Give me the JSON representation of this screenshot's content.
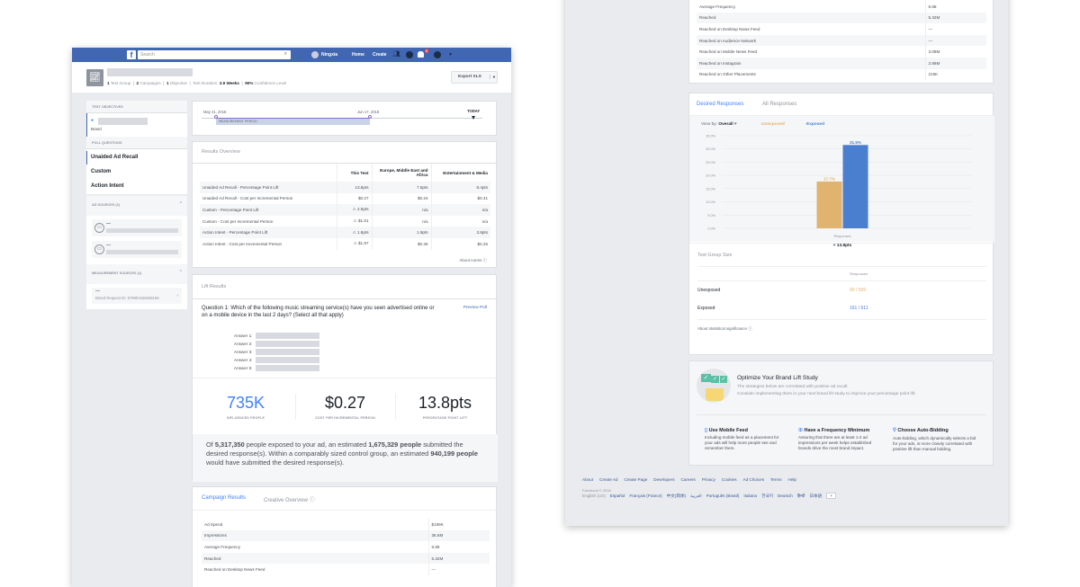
{
  "topbar": {
    "logo": "f",
    "search_placeholder": "Search",
    "user": "Ningxia",
    "home": "Home",
    "create": "Create",
    "notification_count": "6"
  },
  "header": {
    "stats": [
      {
        "n": "1",
        "l": "Test Group"
      },
      {
        "n": "2",
        "l": "Campaigns"
      },
      {
        "n": "1",
        "l": "Objective"
      }
    ],
    "duration_label": "Test Duration:",
    "duration": "3.9 Weeks",
    "confidence": "90%",
    "confidence_label": "Confidence Level",
    "export": "Export XLS"
  },
  "sidebar": {
    "test_objectives": "TEST OBJECTIVES",
    "objective_type": "Brand",
    "poll_questions": "POLL QUESTIONS",
    "questions": [
      "Unaided Ad Recall",
      "Custom",
      "Action Intent"
    ],
    "ad_sources": "AD SOURCES (2)",
    "ad_source_items": [
      "—",
      "—"
    ],
    "measurement_sources": "MEASUREMENT SOURCES (1)",
    "measurement_item": "—",
    "brand_request": "Brand Request ID: 879901645538158"
  },
  "timeline": {
    "start": "May 21, 2018",
    "end": "Jun 17, 2018",
    "today": "TODAY",
    "period": "MEASUREMENT PERIOD"
  },
  "results_overview": {
    "title": "Results Overview",
    "columns": [
      "This Test",
      "Europe, Middle East and Africa",
      "Entertainment & Media"
    ],
    "rows": [
      [
        "Unaided Ad Recall - Percentage Point Lift",
        "13.8pts",
        "7.5pts",
        "8.4pts"
      ],
      [
        "Unaided Ad Recall - Cost per Incremental Person",
        "$0.27",
        "$0.24",
        "$0.41"
      ],
      [
        "Custom - Percentage Point Lift",
        "⚠ 2.5pts",
        "n/a",
        "n/a"
      ],
      [
        "Custom - Cost per Incremental Person",
        "⚠ $1.51",
        "n/a",
        "n/a"
      ],
      [
        "Action Intent - Percentage Point Lift",
        "⚠ 1.9pts",
        "1.9pts",
        "3.8pts"
      ],
      [
        "Action Intent - Cost per Incremental Person",
        "⚠ $1.97",
        "$0.36",
        "$0.25"
      ]
    ],
    "about": "About norms"
  },
  "lift": {
    "title": "Lift Results",
    "question": "Question 1: Which of the following music streaming service(s) have you seen advertised online or on a mobile device in the last 2 days? (Select all that apply)",
    "preview": "Preview Poll",
    "answers": [
      "Answer 1:",
      "Answer 2:",
      "Answer 3:",
      "Answer 4:",
      "Answer 5:"
    ],
    "kpis": [
      {
        "v": "735K",
        "l": "INFLUENCED PEOPLE"
      },
      {
        "v": "$0.27",
        "l": "COST PER INCREMENTAL PERSON"
      },
      {
        "v": "13.8pts",
        "l": "PERCENTAGE POINT LIFT"
      }
    ],
    "summary": {
      "a": "Of ",
      "b": "5,317,350",
      "c": " people exposed to your ad, an estimated ",
      "d": "1,675,329 people",
      "e": " submitted the desired response(s). Within a comparably sized control group, an estimated ",
      "f": "940,199 people",
      "g": " would have submitted the desired response(s)."
    }
  },
  "campaign": {
    "tabs": [
      "Campaign Results",
      "Creative Overview"
    ],
    "rows": [
      [
        "Ad Spend",
        "$199K"
      ],
      [
        "Impressions",
        "36.6M"
      ],
      [
        "Average Frequency",
        "6.88"
      ],
      [
        "Reached",
        "5.32M"
      ],
      [
        "Reached on Desktop News Feed",
        "—"
      ]
    ],
    "rows_right": [
      [
        "Average Frequency",
        "6.88"
      ],
      [
        "Reached",
        "5.32M"
      ],
      [
        "Reached on Desktop News Feed",
        "—"
      ],
      [
        "Reached on Audience Network",
        "—"
      ],
      [
        "Reached on Mobile News Feed",
        "3.08M"
      ],
      [
        "Reached on Instagram",
        "2.86M"
      ],
      [
        "Reached on Other Placements",
        "215K"
      ]
    ]
  },
  "responses": {
    "tabs": [
      "Desired Responses",
      "All Responses"
    ],
    "view_by_label": "View by:",
    "view_by": "Overall",
    "legend": [
      "Unexposed",
      "Exposed"
    ],
    "lift": "+ 13.8pts"
  },
  "chart_data": {
    "type": "bar",
    "categories": [
      "Responses"
    ],
    "series": [
      {
        "name": "Unexposed",
        "values": [
          17.7
        ],
        "color": "#e0b36e"
      },
      {
        "name": "Exposed",
        "values": [
          31.5
        ],
        "color": "#4a7fd0"
      }
    ],
    "data_labels": [
      "17.7%",
      "31.5%"
    ],
    "yticks": [
      "0.0%",
      "5.0%",
      "10.0%",
      "15.0%",
      "20.0%",
      "25.0%",
      "30.0%",
      "35.0%"
    ],
    "ylim": [
      0,
      35
    ],
    "grid": true,
    "legend": "top-left"
  },
  "group_size": {
    "title": "Test Group Size",
    "col": "Responses",
    "rows": [
      [
        "Unexposed",
        "90 / 509"
      ],
      [
        "Exposed",
        "161 / 511"
      ]
    ],
    "about": "About statistical significance"
  },
  "optimize": {
    "title": "Optimize Your Brand Lift Study",
    "sub1": "The strategies below are correlated with positive ad recall.",
    "sub2": "Consider implementing them in your next brand lift study to improve your percentage point lift.",
    "tips": [
      {
        "t": "Use Mobile Feed",
        "d": "Including mobile feed as a placement for your ads will help more people see and remember them."
      },
      {
        "t": "Have a Frequency Minimum",
        "d": "Assuring that there are at least 1-2 ad impressions per week helps established brands drive the most brand impact."
      },
      {
        "t": "Choose Auto-Bidding",
        "d": "Auto-bidding, which dynamically selects a bid for your ads, is more closely correlated with positive lift than manual bidding."
      }
    ]
  },
  "footer": {
    "links": [
      "About",
      "Create Ad",
      "Create Page",
      "Developers",
      "Careers",
      "Privacy",
      "Cookies",
      "Ad Choices",
      "Terms",
      "Help"
    ],
    "copyright": "Facebook © 2018",
    "current_lang": "English (US)",
    "langs": [
      "Español",
      "Français (France)",
      "中文(简体)",
      "العربية",
      "Português (Brasil)",
      "Italiano",
      "한국어",
      "Deutsch",
      "हिन्दी",
      "日本語"
    ],
    "more": "+"
  },
  "colors": {
    "brand": "#4267b2",
    "link": "#4080ff",
    "unexposed": "#e0b36e",
    "exposed": "#4a7fd0"
  }
}
